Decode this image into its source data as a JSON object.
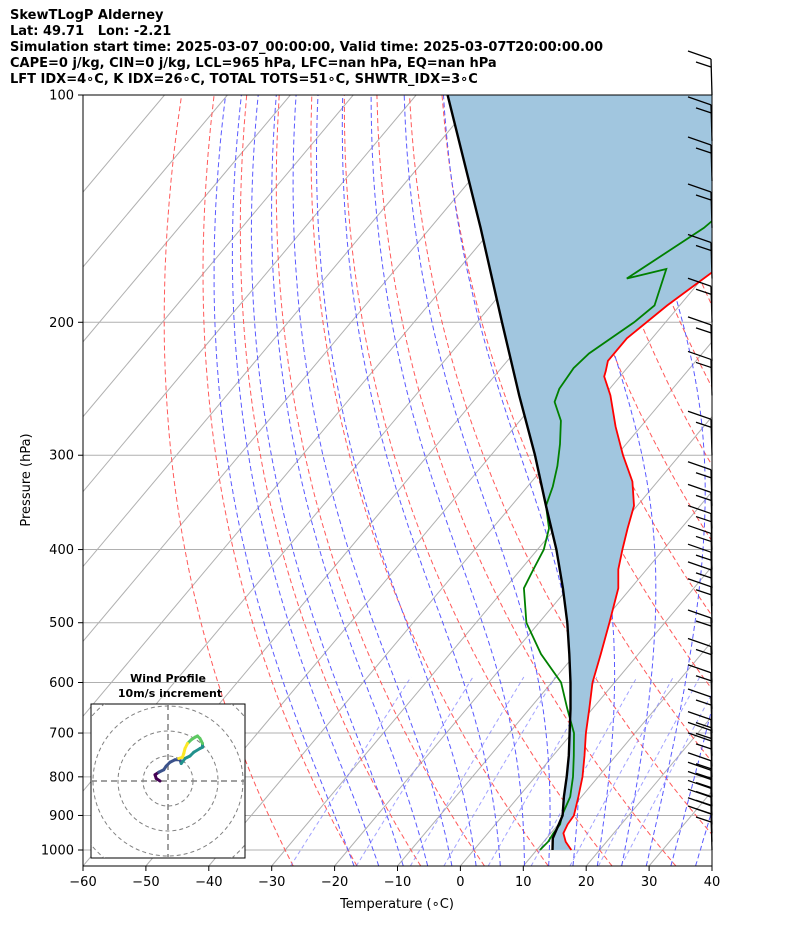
{
  "header": {
    "lines": [
      "SkewTLogP Alderney",
      "Lat: 49.71   Lon: -2.21",
      "Simulation start time: 2025-03-07_00:00:00, Valid time: 2025-03-07T20:00:00.00",
      "CAPE=0 j/kg, CIN=0 j/kg, LCL=965 hPa, LFC=nan hPa, EQ=nan hPa",
      "LFT IDX=4∘C, K IDX=26∘C, TOTAL TOTS=51∘C, SHWTR_IDX=3∘C"
    ]
  },
  "chart_data": [
    {
      "type": "line",
      "subtype": "skew-t log-p",
      "title": "",
      "xlabel": "Temperature (∘C)",
      "ylabel": "Pressure (hPa)",
      "xlim": [
        -60,
        40
      ],
      "ylim": [
        1050,
        100
      ],
      "y_scale": "log",
      "grid": true,
      "xticks": [
        "−60",
        "−50",
        "−40",
        "−30",
        "−20",
        "−10",
        "0",
        "10",
        "20",
        "30",
        "40"
      ],
      "yticks": [
        "100",
        "200",
        "300",
        "400",
        "500",
        "600",
        "700",
        "800",
        "900",
        "1000"
      ],
      "series": [
        {
          "role": "temperature",
          "color": "#ff0000",
          "points": [
            [
              15.5,
              1000
            ],
            [
              13.5,
              975
            ],
            [
              12.0,
              950
            ],
            [
              11.5,
              925
            ],
            [
              11.3,
              900
            ],
            [
              9.5,
              850
            ],
            [
              7.5,
              800
            ],
            [
              5.0,
              750
            ],
            [
              2.2,
              700
            ],
            [
              -0.5,
              650
            ],
            [
              -3.5,
              600
            ],
            [
              -6.0,
              550
            ],
            [
              -8.8,
              500
            ],
            [
              -12.0,
              450
            ],
            [
              -14.5,
              425
            ],
            [
              -16.5,
              400
            ],
            [
              -18.5,
              375
            ],
            [
              -20.5,
              350
            ],
            [
              -24,
              325
            ],
            [
              -29,
              300
            ],
            [
              -34,
              275
            ],
            [
              -39,
              250
            ],
            [
              -42.5,
              236
            ],
            [
              -43,
              232
            ],
            [
              -44,
              225
            ],
            [
              -44,
              210
            ],
            [
              -42,
              190
            ],
            [
              -39,
              170
            ],
            [
              -36.5,
              160
            ],
            [
              -35,
              150
            ],
            [
              -33,
              140
            ],
            [
              -31.5,
              130
            ],
            [
              -30,
              120
            ],
            [
              -28.5,
              110
            ],
            [
              -27.2,
              100
            ]
          ]
        },
        {
          "role": "dewpoint",
          "color": "#008000",
          "points": [
            [
              10.5,
              1000
            ],
            [
              10.7,
              975
            ],
            [
              10.4,
              950
            ],
            [
              10.3,
              925
            ],
            [
              9.4,
              900
            ],
            [
              8.2,
              850
            ],
            [
              6.0,
              800
            ],
            [
              3.3,
              750
            ],
            [
              0.3,
              700
            ],
            [
              -4,
              650
            ],
            [
              -8.5,
              600
            ],
            [
              -15.5,
              550
            ],
            [
              -22,
              500
            ],
            [
              -27,
              450
            ],
            [
              -28,
              425
            ],
            [
              -29,
              400
            ],
            [
              -31,
              375
            ],
            [
              -34.5,
              350
            ],
            [
              -36,
              330
            ],
            [
              -38,
              310
            ],
            [
              -40.5,
              290
            ],
            [
              -43.5,
              270
            ],
            [
              -47,
              255
            ],
            [
              -48,
              245
            ],
            [
              -48.5,
              230
            ],
            [
              -48,
              220
            ],
            [
              -45,
              200
            ],
            [
              -44,
              190
            ],
            [
              -47,
              170
            ],
            [
              -52,
              175
            ],
            [
              -46.5,
              150
            ],
            [
              -44,
              130
            ],
            [
              -41,
              115
            ],
            [
              -38.5,
              100
            ]
          ]
        },
        {
          "role": "parcel",
          "color": "#000000",
          "points": [
            [
              12.5,
              1000
            ],
            [
              11.0,
              965
            ],
            [
              9.5,
              900
            ],
            [
              7.2,
              850
            ],
            [
              5.0,
              800
            ],
            [
              2.5,
              750
            ],
            [
              -0.4,
              700
            ],
            [
              -3.5,
              650
            ],
            [
              -7,
              600
            ],
            [
              -11,
              550
            ],
            [
              -15.5,
              500
            ],
            [
              -20.8,
              450
            ],
            [
              -27,
              400
            ],
            [
              -34.5,
              350
            ],
            [
              -43,
              300
            ],
            [
              -53.5,
              250
            ],
            [
              -66,
              200
            ],
            [
              -82,
              150
            ],
            [
              -105,
              100
            ]
          ]
        }
      ],
      "shaded_region": {
        "between": [
          "parcel",
          "temperature"
        ],
        "color": "#a1c6df"
      },
      "wind_barbs": {
        "color": "#000000",
        "pressures": [
          1000,
          975,
          950,
          925,
          900,
          875,
          850,
          800,
          775,
          750,
          700,
          650,
          600,
          550,
          500,
          475,
          450,
          425,
          400,
          375,
          350,
          300,
          250,
          225,
          200,
          175,
          150,
          130,
          115,
          100
        ]
      }
    },
    {
      "type": "line",
      "subtype": "hodograph",
      "title": "Wind Profile",
      "subtitle": "10m/s increment",
      "grid": true,
      "series": [
        {
          "role": "hodograph",
          "points": [
            [
              0,
              0
            ],
            [
              -3,
              2
            ],
            [
              -4,
              5
            ],
            [
              -1,
              7
            ],
            [
              3,
              9
            ],
            [
              5,
              12
            ],
            [
              8,
              15
            ],
            [
              12,
              17
            ],
            [
              16,
              17
            ],
            [
              17,
              14
            ],
            [
              20,
              18
            ],
            [
              24,
              20
            ],
            [
              27,
              23
            ],
            [
              32,
              26
            ],
            [
              34,
              27
            ],
            [
              34,
              30
            ],
            [
              33,
              32
            ],
            [
              32,
              34
            ],
            [
              30,
              36
            ],
            [
              28,
              35
            ],
            [
              25,
              33
            ],
            [
              22,
              30
            ],
            [
              20,
              26
            ],
            [
              19,
              22
            ],
            [
              18,
              19
            ],
            [
              15,
              18
            ]
          ]
        }
      ]
    }
  ]
}
